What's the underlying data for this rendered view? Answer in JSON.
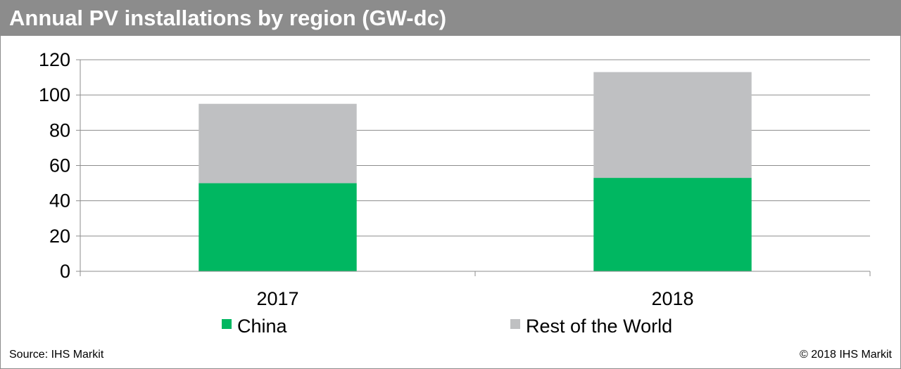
{
  "chart_data": {
    "type": "bar",
    "stacked": true,
    "title": "Annual PV installations by region (GW-dc)",
    "categories": [
      "2017",
      "2018"
    ],
    "series": [
      {
        "name": "China",
        "values": [
          50,
          53
        ],
        "color": "#00b761"
      },
      {
        "name": "Rest of the World",
        "values": [
          45,
          60
        ],
        "color": "#bfc0c2"
      }
    ],
    "ylim": [
      0,
      120
    ],
    "yticks": [
      0,
      20,
      40,
      60,
      80,
      100,
      120
    ],
    "grid": true,
    "legend_position": "bottom"
  },
  "footer": {
    "source": "Source: IHS Markit",
    "copyright": "© 2018 IHS Markit"
  }
}
